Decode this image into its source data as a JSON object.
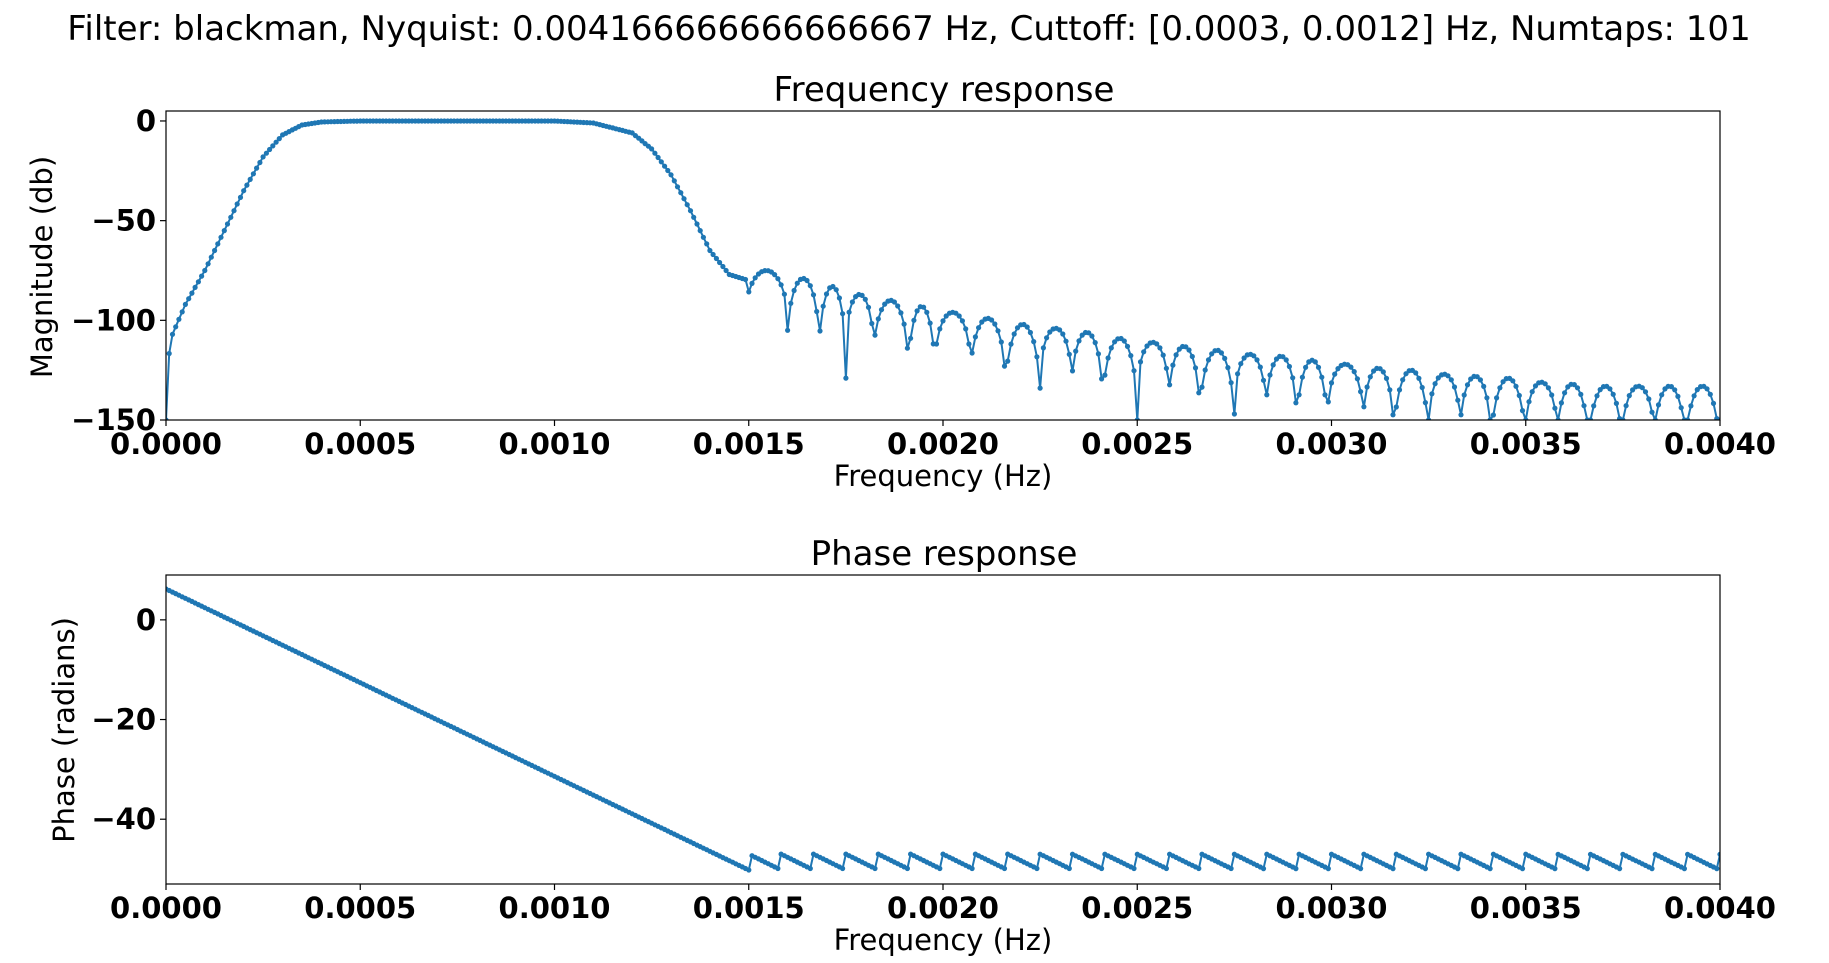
{
  "suptitle": "Filter: blackman, Nyquist: 0.004166666666666667 Hz, Cuttoff: [0.0003, 0.0012] Hz, Numtaps: 101",
  "series_color": "#1f77b4",
  "chart_data": [
    {
      "type": "line",
      "title": "Frequency response",
      "xlabel": "Frequency (Hz)",
      "ylabel": "Magnitude (db)",
      "xlim": [
        0,
        0.004
      ],
      "ylim": [
        -150,
        5
      ],
      "xticks": [
        0,
        0.0005,
        0.001,
        0.0015,
        0.002,
        0.0025,
        0.003,
        0.0035,
        0.004
      ],
      "xtick_labels": [
        "0.0000",
        "0.0005",
        "0.0010",
        "0.0015",
        "0.0020",
        "0.0025",
        "0.0030",
        "0.0035",
        "0.0040"
      ],
      "yticks": [
        0,
        -50,
        -100,
        -150
      ],
      "ytick_labels": [
        "0",
        "−50",
        "−100",
        "−150"
      ],
      "grid": false,
      "marker": "dot",
      "series": [
        {
          "kind": "blackman_bandpass_magnitude",
          "points_summary": [
            [
              0.0,
              -150
            ],
            [
              1e-05,
              -110
            ],
            [
              5e-05,
              -92
            ],
            [
              0.0001,
              -75
            ],
            [
              0.00015,
              -55
            ],
            [
              0.0002,
              -35
            ],
            [
              0.00025,
              -18
            ],
            [
              0.0003,
              -7
            ],
            [
              0.00035,
              -2
            ],
            [
              0.0004,
              -0.5
            ],
            [
              0.0005,
              0
            ],
            [
              0.001,
              0
            ],
            [
              0.0011,
              -1
            ],
            [
              0.0012,
              -6
            ],
            [
              0.00125,
              -14
            ],
            [
              0.0013,
              -27
            ],
            [
              0.00135,
              -45
            ],
            [
              0.0014,
              -65
            ],
            [
              0.00145,
              -77
            ],
            [
              0.0015,
              -80
            ],
            [
              0.00155,
              -75
            ],
            [
              0.004,
              -150
            ]
          ],
          "sidelobe_peaks_db": [
            -75,
            -79,
            -83,
            -87,
            -90,
            -93,
            -96,
            -99,
            -102,
            -104,
            -106,
            -109,
            -111,
            -113,
            -115,
            -117,
            -118,
            -120,
            -122,
            -124,
            -125,
            -127,
            -128,
            -129,
            -131,
            -132,
            -133
          ],
          "null_frequencies_hz": [
            0.00149,
            0.0016,
            0.00168,
            0.00175,
            0.00182,
            0.00191,
            0.00198,
            0.00207,
            0.00216,
            0.00225,
            0.00233,
            0.00241,
            0.0025,
            0.00258,
            0.00266,
            0.00275,
            0.00283,
            0.00291,
            0.00299,
            0.00308,
            0.00316,
            0.00325,
            0.00333,
            0.00341,
            0.0035,
            0.00358,
            0.00366,
            0.00375,
            0.00383,
            0.00391,
            0.004
          ]
        }
      ]
    },
    {
      "type": "line",
      "title": "Phase response",
      "xlabel": "Frequency (Hz)",
      "ylabel": "Phase (radians)",
      "xlim": [
        0,
        0.004
      ],
      "ylim": [
        -53,
        9
      ],
      "xticks": [
        0,
        0.0005,
        0.001,
        0.0015,
        0.002,
        0.0025,
        0.003,
        0.0035,
        0.004
      ],
      "xtick_labels": [
        "0.0000",
        "0.0005",
        "0.0010",
        "0.0015",
        "0.0020",
        "0.0025",
        "0.0030",
        "0.0035",
        "0.0040"
      ],
      "yticks": [
        0,
        -20,
        -40
      ],
      "ytick_labels": [
        "0",
        "−20",
        "−40"
      ],
      "grid": false,
      "marker": "dot",
      "series": [
        {
          "kind": "linear_then_sawtooth",
          "linear_segment": [
            [
              0.0,
              6.2
            ],
            [
              0.0015,
              -50.2
            ]
          ],
          "sawtooth_period_hz": 8.33e-05,
          "sawtooth_range": [
            -50.2,
            -47.0
          ]
        }
      ]
    }
  ]
}
